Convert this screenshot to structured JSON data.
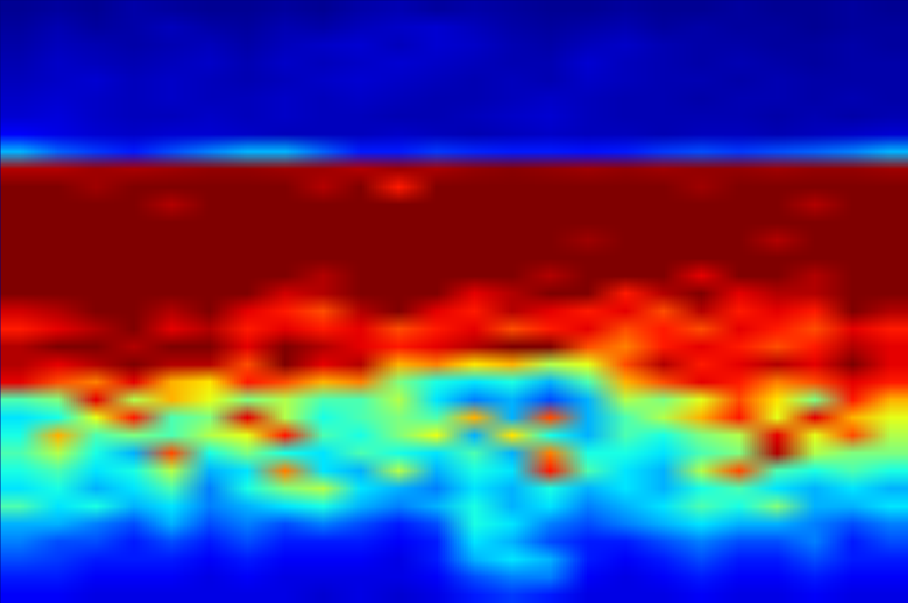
{
  "chart_data": {
    "type": "heatmap",
    "tick_labels": false,
    "value_range": [
      0,
      1
    ],
    "cells": [
      [
        0.02,
        0.03,
        0.02,
        0.04,
        0.03,
        0.02,
        0.02,
        0.03,
        0.02,
        0.04,
        0.05,
        0.03,
        0.04,
        0.03,
        0.02,
        0.02,
        0.03,
        0.02,
        0.02,
        0.03,
        0.02,
        0.02,
        0.03,
        0.02
      ],
      [
        0.03,
        0.05,
        0.03,
        0.04,
        0.06,
        0.04,
        0.03,
        0.05,
        0.04,
        0.06,
        0.07,
        0.08,
        0.06,
        0.04,
        0.03,
        0.04,
        0.05,
        0.03,
        0.04,
        0.03,
        0.03,
        0.02,
        0.03,
        0.03
      ],
      [
        0.04,
        0.06,
        0.05,
        0.04,
        0.05,
        0.06,
        0.04,
        0.06,
        0.07,
        0.08,
        0.06,
        0.08,
        0.07,
        0.05,
        0.04,
        0.06,
        0.07,
        0.05,
        0.04,
        0.04,
        0.03,
        0.03,
        0.04,
        0.03
      ],
      [
        0.05,
        0.07,
        0.06,
        0.05,
        0.06,
        0.07,
        0.05,
        0.07,
        0.06,
        0.07,
        0.08,
        0.07,
        0.06,
        0.05,
        0.05,
        0.08,
        0.06,
        0.05,
        0.04,
        0.05,
        0.04,
        0.03,
        0.04,
        0.04
      ],
      [
        0.06,
        0.07,
        0.08,
        0.06,
        0.07,
        0.06,
        0.05,
        0.06,
        0.07,
        0.08,
        0.07,
        0.06,
        0.05,
        0.06,
        0.05,
        0.07,
        0.06,
        0.05,
        0.05,
        0.04,
        0.05,
        0.04,
        0.04,
        0.04
      ],
      [
        0.07,
        0.08,
        0.07,
        0.06,
        0.07,
        0.06,
        0.06,
        0.07,
        0.06,
        0.07,
        0.06,
        0.05,
        0.05,
        0.06,
        0.07,
        0.06,
        0.05,
        0.05,
        0.04,
        0.05,
        0.05,
        0.04,
        0.05,
        0.04
      ],
      [
        0.08,
        0.09,
        0.07,
        0.06,
        0.06,
        0.07,
        0.06,
        0.07,
        0.06,
        0.06,
        0.05,
        0.05,
        0.06,
        0.07,
        0.08,
        0.06,
        0.05,
        0.05,
        0.05,
        0.05,
        0.04,
        0.05,
        0.04,
        0.05
      ],
      [
        0.12,
        0.1,
        0.08,
        0.07,
        0.08,
        0.08,
        0.07,
        0.06,
        0.06,
        0.06,
        0.07,
        0.06,
        0.05,
        0.06,
        0.07,
        0.06,
        0.06,
        0.05,
        0.06,
        0.06,
        0.05,
        0.06,
        0.07,
        0.08
      ],
      [
        0.3,
        0.22,
        0.18,
        0.15,
        0.2,
        0.25,
        0.3,
        0.3,
        0.22,
        0.15,
        0.15,
        0.18,
        0.16,
        0.15,
        0.15,
        0.14,
        0.15,
        0.18,
        0.2,
        0.18,
        0.2,
        0.22,
        0.25,
        0.3
      ],
      [
        0.95,
        0.95,
        0.97,
        0.96,
        0.97,
        0.98,
        0.98,
        0.97,
        0.97,
        0.95,
        0.97,
        0.96,
        0.98,
        0.99,
        0.98,
        0.97,
        0.98,
        0.97,
        0.98,
        0.98,
        0.97,
        0.98,
        0.98,
        0.97
      ],
      [
        1,
        1,
        0.97,
        1,
        1,
        1,
        1,
        1,
        0.95,
        1,
        0.85,
        1,
        1,
        1,
        1,
        1,
        1,
        1,
        0.97,
        1,
        1,
        1,
        1,
        1
      ],
      [
        1,
        1,
        1,
        1,
        0.95,
        1,
        1,
        1,
        1,
        1,
        1,
        1,
        1,
        1,
        1,
        1,
        1,
        1,
        1,
        1,
        1,
        0.95,
        1,
        1
      ],
      [
        1,
        1,
        1,
        1,
        1,
        1,
        1,
        1,
        1,
        1,
        1,
        1,
        1,
        1,
        1,
        1,
        1,
        1,
        1,
        1,
        1,
        1,
        1,
        1
      ],
      [
        1,
        1,
        1,
        1,
        1,
        1,
        1,
        1,
        1,
        1,
        1,
        1,
        1,
        1,
        1,
        0.97,
        1,
        1,
        1,
        1,
        0.95,
        1,
        1,
        1
      ],
      [
        1,
        1,
        1,
        1,
        1,
        1,
        1,
        1,
        1,
        1,
        1,
        1,
        1,
        1,
        1,
        1,
        1,
        1,
        1,
        1,
        1,
        1,
        1,
        1
      ],
      [
        1,
        1,
        1,
        1,
        1,
        1,
        1,
        1,
        0.95,
        1,
        1,
        1,
        1,
        1,
        0.95,
        1,
        1,
        1,
        0.9,
        1,
        1,
        0.95,
        1,
        1
      ],
      [
        1,
        1,
        1,
        1,
        1,
        1,
        1,
        0.92,
        0.95,
        1,
        1,
        1,
        0.9,
        0.95,
        1,
        1,
        0.85,
        0.95,
        1,
        0.9,
        0.95,
        0.95,
        1,
        1
      ],
      [
        0.92,
        0.95,
        1,
        1,
        0.95,
        1,
        0.9,
        0.85,
        0.8,
        0.95,
        1,
        0.9,
        0.85,
        0.95,
        0.9,
        0.85,
        0.9,
        0.8,
        0.95,
        0.85,
        0.9,
        0.85,
        1,
        0.95
      ],
      [
        0.85,
        0.9,
        0.95,
        1,
        0.9,
        0.95,
        0.85,
        0.9,
        0.85,
        0.9,
        0.8,
        0.85,
        0.9,
        0.8,
        0.85,
        0.9,
        0.8,
        0.85,
        0.8,
        0.9,
        0.85,
        0.8,
        0.9,
        0.85
      ],
      [
        0.95,
        1,
        1,
        0.95,
        1,
        1,
        0.9,
        1,
        0.95,
        0.9,
        0.85,
        0.9,
        0.95,
        1,
        1,
        0.8,
        0.75,
        0.85,
        0.9,
        0.85,
        0.8,
        0.85,
        0.95,
        0.9
      ],
      [
        0.95,
        0.9,
        0.95,
        1,
        0.95,
        0.95,
        0.8,
        1,
        0.9,
        0.95,
        0.7,
        0.75,
        0.65,
        0.7,
        0.55,
        0.6,
        0.8,
        0.95,
        0.85,
        0.9,
        0.95,
        0.9,
        1,
        0.9
      ],
      [
        0.9,
        0.8,
        0.75,
        0.9,
        0.7,
        0.65,
        0.85,
        0.8,
        0.7,
        0.75,
        0.5,
        0.4,
        0.35,
        0.4,
        0.3,
        0.45,
        0.7,
        0.8,
        0.9,
        0.85,
        0.75,
        0.8,
        0.9,
        0.85
      ],
      [
        0.45,
        0.5,
        0.9,
        0.55,
        0.7,
        0.6,
        0.5,
        0.55,
        0.45,
        0.45,
        0.55,
        0.35,
        0.25,
        0.3,
        0.2,
        0.3,
        0.55,
        0.5,
        0.6,
        0.8,
        0.65,
        0.5,
        0.85,
        0.7
      ],
      [
        0.35,
        0.4,
        0.6,
        0.85,
        0.45,
        0.5,
        0.9,
        0.55,
        0.4,
        0.45,
        0.5,
        0.45,
        0.7,
        0.3,
        0.8,
        0.3,
        0.45,
        0.55,
        0.7,
        0.85,
        0.6,
        0.9,
        0.7,
        0.6
      ],
      [
        0.4,
        0.7,
        0.45,
        0.5,
        0.45,
        0.55,
        0.6,
        0.85,
        0.45,
        0.4,
        0.5,
        0.6,
        0.3,
        0.65,
        0.4,
        0.3,
        0.45,
        0.4,
        0.5,
        0.55,
        0.9,
        0.6,
        0.8,
        0.55
      ],
      [
        0.45,
        0.55,
        0.4,
        0.3,
        0.8,
        0.4,
        0.5,
        0.4,
        0.35,
        0.45,
        0.4,
        0.35,
        0.45,
        0.3,
        0.75,
        0.4,
        0.4,
        0.35,
        0.45,
        0.5,
        0.95,
        0.55,
        0.5,
        0.5
      ],
      [
        0.4,
        0.45,
        0.35,
        0.4,
        0.55,
        0.3,
        0.35,
        0.75,
        0.35,
        0.3,
        0.55,
        0.3,
        0.4,
        0.35,
        0.85,
        0.45,
        0.35,
        0.3,
        0.55,
        0.8,
        0.45,
        0.4,
        0.45,
        0.4
      ],
      [
        0.35,
        0.4,
        0.3,
        0.35,
        0.45,
        0.25,
        0.4,
        0.5,
        0.55,
        0.35,
        0.3,
        0.25,
        0.35,
        0.3,
        0.4,
        0.3,
        0.35,
        0.3,
        0.4,
        0.45,
        0.35,
        0.3,
        0.35,
        0.3
      ],
      [
        0.45,
        0.35,
        0.4,
        0.3,
        0.35,
        0.25,
        0.3,
        0.35,
        0.4,
        0.3,
        0.25,
        0.3,
        0.4,
        0.3,
        0.35,
        0.25,
        0.3,
        0.35,
        0.45,
        0.4,
        0.5,
        0.3,
        0.3,
        0.35
      ],
      [
        0.3,
        0.3,
        0.25,
        0.2,
        0.3,
        0.2,
        0.25,
        0.2,
        0.25,
        0.2,
        0.15,
        0.2,
        0.4,
        0.35,
        0.25,
        0.2,
        0.25,
        0.3,
        0.35,
        0.3,
        0.3,
        0.25,
        0.2,
        0.25
      ],
      [
        0.25,
        0.2,
        0.2,
        0.15,
        0.2,
        0.15,
        0.2,
        0.15,
        0.15,
        0.15,
        0.12,
        0.15,
        0.35,
        0.3,
        0.2,
        0.15,
        0.15,
        0.2,
        0.25,
        0.2,
        0.2,
        0.25,
        0.15,
        0.2
      ],
      [
        0.2,
        0.18,
        0.15,
        0.15,
        0.15,
        0.12,
        0.15,
        0.12,
        0.12,
        0.12,
        0.1,
        0.15,
        0.3,
        0.35,
        0.3,
        0.15,
        0.12,
        0.15,
        0.2,
        0.15,
        0.15,
        0.2,
        0.15,
        0.15
      ],
      [
        0.15,
        0.15,
        0.12,
        0.12,
        0.12,
        0.1,
        0.12,
        0.1,
        0.1,
        0.1,
        0.1,
        0.12,
        0.2,
        0.25,
        0.25,
        0.12,
        0.1,
        0.12,
        0.15,
        0.12,
        0.12,
        0.15,
        0.12,
        0.12
      ],
      [
        0.12,
        0.12,
        0.1,
        0.1,
        0.1,
        0.1,
        0.1,
        0.1,
        0.08,
        0.1,
        0.08,
        0.1,
        0.15,
        0.18,
        0.15,
        0.1,
        0.1,
        0.1,
        0.12,
        0.1,
        0.1,
        0.12,
        0.1,
        0.1
      ]
    ]
  }
}
